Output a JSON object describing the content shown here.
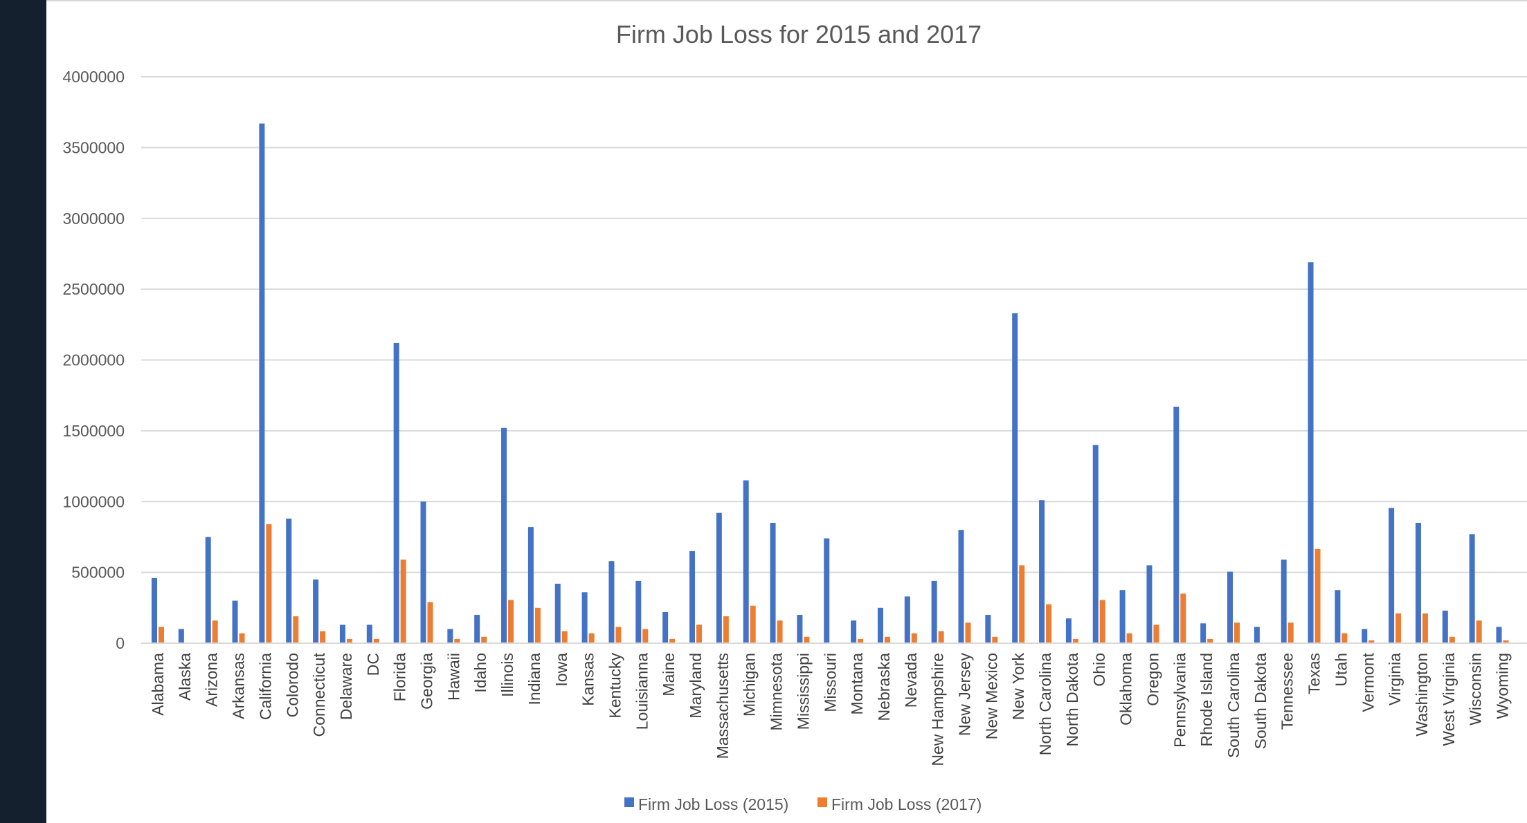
{
  "chart_data": {
    "type": "bar",
    "title": "Firm Job Loss for 2015 and 2017",
    "xlabel": "",
    "ylabel": "",
    "ylim": [
      0,
      4000000
    ],
    "yticks": [
      0,
      500000,
      1000000,
      1500000,
      2000000,
      2500000,
      3000000,
      3500000,
      4000000
    ],
    "ytick_labels": [
      "0",
      "500000",
      "1000000",
      "1500000",
      "2000000",
      "2500000",
      "3000000",
      "3500000",
      "4000000"
    ],
    "grid": true,
    "legend_position": "bottom",
    "categories": [
      "Alabama",
      "Alaska",
      "Arizona",
      "Arkansas",
      "California",
      "Colorodo",
      "Connecticut",
      "Delaware",
      "DC",
      "Florida",
      "Georgia",
      "Hawaii",
      "Idaho",
      "Illinois",
      "Indiana",
      "Iowa",
      "Kansas",
      "Kentucky",
      "Louisianna",
      "Maine",
      "Maryland",
      "Massachusetts",
      "Michigan",
      "Mimnesota",
      "Mississippi",
      "Missouri",
      "Montana",
      "Nebraska",
      "Nevada",
      "New Hampshire",
      "New Jersey",
      "New Mexico",
      "New York",
      "North Carolina",
      "North Dakota",
      "Ohio",
      "Oklahoma",
      "Oregon",
      "Pennsylvania",
      "Rhode Island",
      "South Carolina",
      "South Dakota",
      "Tennessee",
      "Texas",
      "Utah",
      "Vermont",
      "Virginia",
      "Washington",
      "West Virginia",
      "Wisconsin",
      "Wyoming"
    ],
    "series": [
      {
        "name": "Firm Job Loss (2015)",
        "color": "#4472c4",
        "values": [
          460000,
          100000,
          750000,
          300000,
          3670000,
          880000,
          450000,
          130000,
          130000,
          2120000,
          1000000,
          100000,
          200000,
          1520000,
          820000,
          420000,
          360000,
          580000,
          440000,
          220000,
          650000,
          920000,
          1150000,
          850000,
          200000,
          740000,
          160000,
          250000,
          330000,
          440000,
          800000,
          200000,
          2330000,
          1010000,
          175000,
          1400000,
          375000,
          550000,
          1670000,
          140000,
          505000,
          115000,
          590000,
          2690000,
          375000,
          100000,
          955000,
          850000,
          230000,
          770000,
          115000
        ]
      },
      {
        "name": "Firm Job Loss (2017)",
        "color": "#ed7d31",
        "values": [
          115000,
          0,
          160000,
          70000,
          840000,
          190000,
          85000,
          30000,
          30000,
          590000,
          290000,
          30000,
          45000,
          305000,
          250000,
          85000,
          70000,
          115000,
          100000,
          30000,
          130000,
          190000,
          265000,
          160000,
          45000,
          0,
          30000,
          45000,
          70000,
          85000,
          145000,
          45000,
          550000,
          275000,
          30000,
          305000,
          70000,
          130000,
          350000,
          30000,
          145000,
          0,
          145000,
          665000,
          70000,
          20000,
          210000,
          210000,
          45000,
          160000,
          20000
        ]
      }
    ]
  }
}
